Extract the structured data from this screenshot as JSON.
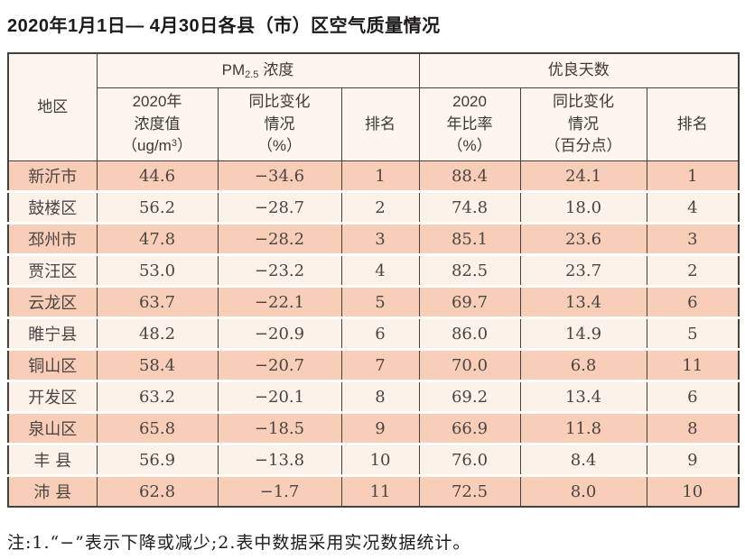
{
  "title": "2020年1月1日— 4月30日各县（市）区空气质量情况",
  "note": "注:1.“−”表示下降或减少;2.表中数据采用实况数据统计。",
  "colors": {
    "row_odd_bg": "#f8ceb9",
    "row_even_bg": "#fdf2ea",
    "header_bg": "#fdf5ee",
    "border": "#45413d"
  },
  "table": {
    "headers": {
      "region": "地区",
      "pm_group": {
        "base": "PM",
        "sub": "2.5",
        "label": "浓度"
      },
      "good_group": "优良天数",
      "pm_value": {
        "line1": "2020年",
        "line2": "浓度值",
        "unit_open": "（ug/m",
        "unit_sup": "3",
        "unit_close": "）"
      },
      "pm_change": {
        "line1": "同比变化",
        "line2": "情况",
        "line3": "（%）"
      },
      "pm_rank": "排名",
      "good_rate": {
        "line1": "2020",
        "line2": "年比率",
        "line3": "（%）"
      },
      "good_change": {
        "line1": "同比变化",
        "line2": "情况",
        "line3": "（百分点）"
      },
      "good_rank": "排名"
    },
    "rows": [
      {
        "region": "新沂市",
        "pm_value": "44.6",
        "pm_change": "−34.6",
        "pm_rank": "1",
        "good_rate": "88.4",
        "good_change": "24.1",
        "good_rank": "1"
      },
      {
        "region": "鼓楼区",
        "pm_value": "56.2",
        "pm_change": "−28.7",
        "pm_rank": "2",
        "good_rate": "74.8",
        "good_change": "18.0",
        "good_rank": "4"
      },
      {
        "region": "邳州市",
        "pm_value": "47.8",
        "pm_change": "−28.2",
        "pm_rank": "3",
        "good_rate": "85.1",
        "good_change": "23.6",
        "good_rank": "3"
      },
      {
        "region": "贾汪区",
        "pm_value": "53.0",
        "pm_change": "−23.2",
        "pm_rank": "4",
        "good_rate": "82.5",
        "good_change": "23.7",
        "good_rank": "2"
      },
      {
        "region": "云龙区",
        "pm_value": "63.7",
        "pm_change": "−22.1",
        "pm_rank": "5",
        "good_rate": "69.7",
        "good_change": "13.4",
        "good_rank": "6"
      },
      {
        "region": "睢宁县",
        "pm_value": "48.2",
        "pm_change": "−20.9",
        "pm_rank": "6",
        "good_rate": "86.0",
        "good_change": "14.9",
        "good_rank": "5"
      },
      {
        "region": "铜山区",
        "pm_value": "58.4",
        "pm_change": "−20.7",
        "pm_rank": "7",
        "good_rate": "70.0",
        "good_change": "6.8",
        "good_rank": "11"
      },
      {
        "region": "开发区",
        "pm_value": "63.2",
        "pm_change": "−20.1",
        "pm_rank": "8",
        "good_rate": "69.2",
        "good_change": "13.4",
        "good_rank": "6"
      },
      {
        "region": "泉山区",
        "pm_value": "65.8",
        "pm_change": "−18.5",
        "pm_rank": "9",
        "good_rate": "66.9",
        "good_change": "11.8",
        "good_rank": "8"
      },
      {
        "region": "丰 县",
        "pm_value": "56.9",
        "pm_change": "−13.8",
        "pm_rank": "10",
        "good_rate": "76.0",
        "good_change": "8.4",
        "good_rank": "9"
      },
      {
        "region": "沛 县",
        "pm_value": "62.8",
        "pm_change": "−1.7",
        "pm_rank": "11",
        "good_rate": "72.5",
        "good_change": "8.0",
        "good_rank": "10"
      }
    ]
  }
}
